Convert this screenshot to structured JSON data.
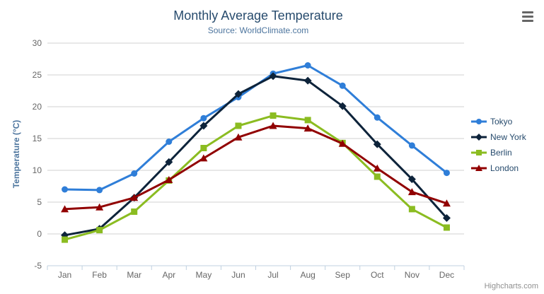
{
  "chart_data": {
    "type": "line",
    "title": "Monthly Average Temperature",
    "subtitle": "Source: WorldClimate.com",
    "xlabel": "",
    "ylabel": "Temperature (°C)",
    "categories": [
      "Jan",
      "Feb",
      "Mar",
      "Apr",
      "May",
      "Jun",
      "Jul",
      "Aug",
      "Sep",
      "Oct",
      "Nov",
      "Dec"
    ],
    "ylim": [
      -5,
      30
    ],
    "ytick_interval": 5,
    "grid": true,
    "legend_position": "right",
    "series": [
      {
        "name": "Tokyo",
        "color": "#2f7ed8",
        "marker": "circle",
        "values": [
          7.0,
          6.9,
          9.5,
          14.5,
          18.2,
          21.5,
          25.2,
          26.5,
          23.3,
          18.3,
          13.9,
          9.6
        ]
      },
      {
        "name": "New York",
        "color": "#0d233a",
        "marker": "diamond",
        "values": [
          -0.2,
          0.8,
          5.7,
          11.3,
          17.0,
          22.0,
          24.8,
          24.1,
          20.1,
          14.1,
          8.6,
          2.5
        ]
      },
      {
        "name": "Berlin",
        "color": "#8bbc21",
        "marker": "square",
        "values": [
          -0.9,
          0.6,
          3.5,
          8.4,
          13.5,
          17.0,
          18.6,
          17.9,
          14.3,
          9.0,
          3.9,
          1.0
        ]
      },
      {
        "name": "London",
        "color": "#910000",
        "marker": "triangle",
        "values": [
          3.9,
          4.2,
          5.7,
          8.5,
          11.9,
          15.2,
          17.0,
          16.6,
          14.2,
          10.3,
          6.6,
          4.8
        ]
      }
    ],
    "credit": "Highcharts.com"
  },
  "icons": {
    "menu": "hamburger-icon"
  },
  "theme": {
    "title_color": "#274b6d",
    "subtitle_color": "#4d759e",
    "axis_title_color": "#4d759e",
    "tick_label_color": "#666666",
    "grid_color": "#d0d0d0",
    "axis_line_color": "#c0d0e0",
    "legend_text_color": "#274b6d",
    "credit_color": "#909090",
    "menu_icon_color": "#666666"
  }
}
